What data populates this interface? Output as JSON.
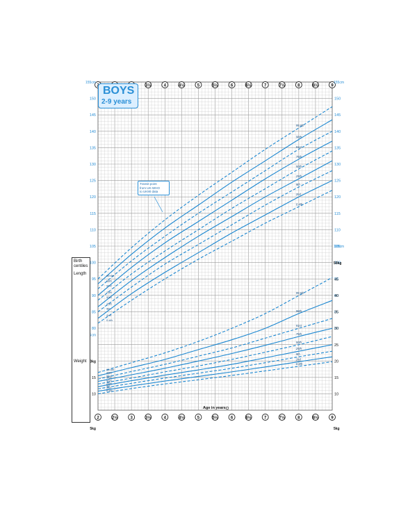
{
  "title": {
    "main": "BOYS",
    "subtitle": "2-9 years"
  },
  "side_panel": {
    "birth_centiles": [
      "Birth",
      "centiles"
    ],
    "length_label": "Length",
    "weight_label": "Weight"
  },
  "callout": {
    "lines": [
      "Transit point",
      "from UK-WHO",
      "to UK90 data"
    ]
  },
  "x_axis": {
    "label": "Age in years",
    "ticks": [
      "2",
      "2½",
      "3",
      "3½",
      "4",
      "4½",
      "5",
      "5½",
      "6",
      "6½",
      "7",
      "7½",
      "8",
      "8½",
      "9"
    ]
  },
  "height_axis": {
    "unit_top": "155cm",
    "unit_bottom": "105cm",
    "left_unit_bottom": "75cm",
    "ticks": [
      "150",
      "145",
      "140",
      "135",
      "130",
      "125",
      "120",
      "115",
      "110",
      "105",
      "100",
      "95",
      "90",
      "85",
      "80"
    ]
  },
  "weight_axis": {
    "unit_top": "50kg",
    "unit_bottom": "5kg",
    "left_unit_top": "20kg",
    "left_unit_bottom": "5kg",
    "right_ticks": [
      "45",
      "40",
      "35",
      "30",
      "25",
      "20",
      "15",
      "10"
    ],
    "left_ticks": [
      "15",
      "10"
    ]
  },
  "colors": {
    "line": "#1a86d0",
    "grid": "#c9c9c9",
    "grid_major": "#9a9a9a",
    "accent": "#2a8fd6"
  },
  "chart_data": {
    "type": "line",
    "title": "BOYS 2-9 years",
    "xlabel": "Age in years",
    "xlim": [
      2,
      9
    ],
    "height_chart": {
      "ylim": [
        80,
        155
      ],
      "unit": "cm",
      "centile_labels": [
        "99.6th",
        "98th",
        "91st",
        "75th",
        "50th",
        "25th",
        "9th",
        "2nd",
        "0.4th"
      ],
      "x": [
        2,
        3,
        4,
        5,
        6,
        7,
        8,
        9
      ],
      "series": [
        {
          "name": "99.6th",
          "dashed": true,
          "values": [
            95.0,
            104.5,
            113.0,
            120.5,
            127.5,
            134.5,
            141.0,
            147.5
          ]
        },
        {
          "name": "98th",
          "dashed": false,
          "values": [
            93.5,
            102.5,
            110.5,
            117.5,
            124.5,
            131.0,
            137.5,
            143.5
          ]
        },
        {
          "name": "91st",
          "dashed": true,
          "values": [
            92.0,
            100.5,
            108.0,
            115.0,
            121.5,
            128.0,
            134.5,
            140.0
          ]
        },
        {
          "name": "75th",
          "dashed": false,
          "values": [
            90.0,
            98.5,
            106.0,
            112.5,
            119.0,
            125.5,
            131.5,
            137.0
          ]
        },
        {
          "name": "50th",
          "dashed": true,
          "values": [
            88.5,
            96.5,
            103.5,
            110.0,
            116.5,
            122.5,
            128.5,
            134.0
          ]
        },
        {
          "name": "25th",
          "dashed": false,
          "values": [
            86.5,
            94.5,
            101.5,
            108.0,
            114.0,
            120.0,
            125.5,
            131.0
          ]
        },
        {
          "name": "9th",
          "dashed": true,
          "values": [
            85.0,
            92.5,
            99.5,
            105.5,
            111.5,
            117.5,
            123.0,
            128.0
          ]
        },
        {
          "name": "2nd",
          "dashed": false,
          "values": [
            83.0,
            90.5,
            97.0,
            103.0,
            109.0,
            114.5,
            120.0,
            125.0
          ]
        },
        {
          "name": "0.4th",
          "dashed": true,
          "values": [
            81.5,
            88.5,
            95.0,
            101.0,
            106.5,
            112.0,
            117.0,
            122.0
          ]
        }
      ]
    },
    "weight_chart": {
      "ylim": [
        5,
        50
      ],
      "unit": "kg",
      "centile_labels": [
        "99.6th",
        "98th",
        "91st",
        "75th",
        "50th",
        "25th",
        "9th",
        "2nd",
        "0.4th"
      ],
      "x": [
        2,
        3,
        4,
        5,
        6,
        7,
        8,
        9
      ],
      "series": [
        {
          "name": "99.6th",
          "dashed": true,
          "values": [
            16.5,
            19.5,
            22.5,
            26.0,
            30.0,
            34.5,
            40.0,
            45.5
          ]
        },
        {
          "name": "98th",
          "dashed": false,
          "values": [
            15.5,
            18.0,
            20.5,
            23.5,
            26.5,
            30.0,
            34.5,
            38.5
          ]
        },
        {
          "name": "91st",
          "dashed": true,
          "values": [
            14.5,
            16.8,
            19.0,
            21.5,
            24.0,
            27.0,
            30.0,
            33.0
          ]
        },
        {
          "name": "75th",
          "dashed": false,
          "values": [
            13.8,
            15.8,
            17.8,
            20.0,
            22.3,
            24.8,
            27.5,
            30.0
          ]
        },
        {
          "name": "50th",
          "dashed": true,
          "values": [
            13.0,
            14.8,
            16.7,
            18.5,
            20.5,
            22.7,
            25.0,
            27.5
          ]
        },
        {
          "name": "25th",
          "dashed": false,
          "values": [
            12.2,
            14.0,
            15.7,
            17.3,
            19.0,
            21.0,
            23.0,
            25.0
          ]
        },
        {
          "name": "9th",
          "dashed": true,
          "values": [
            11.5,
            13.2,
            14.8,
            16.3,
            17.8,
            19.5,
            21.3,
            23.0
          ]
        },
        {
          "name": "2nd",
          "dashed": false,
          "values": [
            10.8,
            12.4,
            13.9,
            15.3,
            16.7,
            18.2,
            19.8,
            21.3
          ]
        },
        {
          "name": "0.4th",
          "dashed": true,
          "values": [
            10.0,
            11.6,
            13.0,
            14.3,
            15.6,
            17.0,
            18.4,
            19.8
          ]
        }
      ]
    }
  }
}
